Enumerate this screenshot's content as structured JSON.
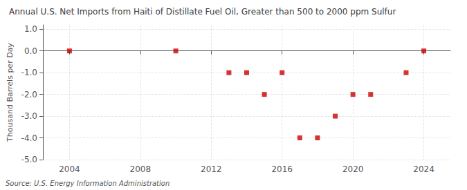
{
  "chart_data": {
    "type": "scatter",
    "title": "Annual U.S. Net Imports from Haiti of Distillate Fuel Oil, Greater than 500 to 2000 ppm Sulfur",
    "ylabel": "Thousand Barrels per Day",
    "source": "Source: U.S. Energy Information Administration",
    "x": [
      2004,
      2010,
      2013,
      2014,
      2015,
      2016,
      2017,
      2018,
      2019,
      2020,
      2021,
      2023,
      2024
    ],
    "values": [
      0.0,
      0.0,
      -1.0,
      -1.0,
      -2.0,
      -1.0,
      -4.0,
      -4.0,
      -3.0,
      -2.0,
      -2.0,
      -1.0,
      0.0
    ],
    "color": "#cc0000",
    "marker": "square",
    "xlim": [
      2002.5,
      2025.5
    ],
    "xticks": [
      2004,
      2008,
      2012,
      2016,
      2020,
      2024
    ],
    "ylim": [
      -5.0,
      1.2
    ],
    "yticks": [
      {
        "value": 1.0,
        "label": "1.0"
      },
      {
        "value": 0.0,
        "label": "0.0"
      },
      {
        "value": -1.0,
        "label": "-1.0"
      },
      {
        "value": -2.0,
        "label": "-2.0"
      },
      {
        "value": -3.0,
        "label": "-3.0"
      },
      {
        "value": -4.0,
        "label": "-4.0"
      },
      {
        "value": -5.0,
        "label": "-5.0"
      }
    ],
    "grid": true
  }
}
